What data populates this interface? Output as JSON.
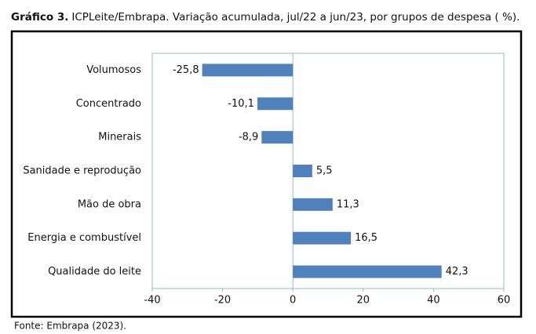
{
  "chart_data": {
    "type": "bar",
    "orientation": "horizontal",
    "title_label": "Gráfico 3.",
    "title": "ICPLeite/Embrapa. Variação acumulada, jul/22 a jun/23, por grupos de despesa ( %).",
    "source": "Fonte: Embrapa (2023).",
    "categories": [
      "Volumosos",
      "Concentrado",
      "Minerais",
      "Sanidade e reprodução",
      "Mão de obra",
      "Energia e combustível",
      "Qualidade do leite"
    ],
    "values": [
      -25.8,
      -10.1,
      -8.9,
      5.5,
      11.3,
      16.5,
      42.3
    ],
    "value_labels": [
      "-25,8",
      "-10,1",
      "-8,9",
      "5,5",
      "11,3",
      "16,5",
      "42,3"
    ],
    "color": "#4f81bd",
    "xlim": [
      -40,
      60
    ],
    "xticks": [
      -40,
      -20,
      0,
      20,
      40,
      60
    ],
    "grid": false
  }
}
